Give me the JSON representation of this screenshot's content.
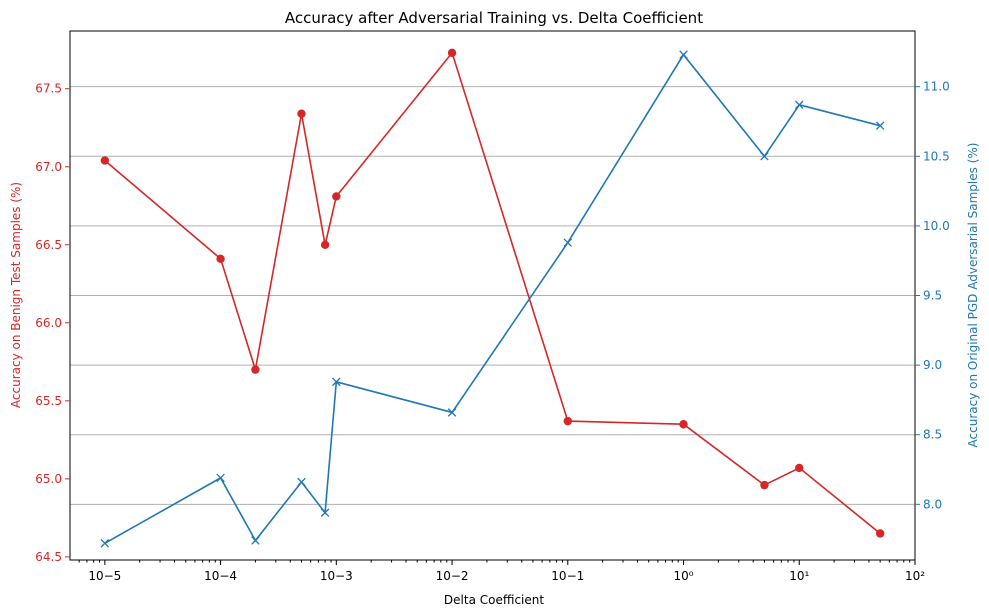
{
  "chart_data": {
    "type": "line",
    "title": "Accuracy after Adversarial Training vs. Delta Coefficient",
    "xlabel": "Delta Coefficient",
    "x_scale": "log",
    "xlim": [
      5e-06,
      100
    ],
    "x_ticks": [
      {
        "value": 1e-05,
        "label": "10−5"
      },
      {
        "value": 0.0001,
        "label": "10−4"
      },
      {
        "value": 0.001,
        "label": "10−3"
      },
      {
        "value": 0.01,
        "label": "10−2"
      },
      {
        "value": 0.1,
        "label": "10−1"
      },
      {
        "value": 1,
        "label": "10⁰"
      },
      {
        "value": 10,
        "label": "10¹"
      },
      {
        "value": 100,
        "label": "10²"
      }
    ],
    "x": [
      1e-05,
      0.0001,
      0.0002,
      0.0005,
      0.0008,
      0.001,
      0.01,
      0.1,
      1,
      5,
      10,
      50
    ],
    "left_axis": {
      "label": "Accuracy on Benign Test Samples (%)",
      "color": "#d62728",
      "ylim": [
        64.48,
        67.87
      ],
      "ticks": [
        "64.5",
        "65.0",
        "65.5",
        "66.0",
        "66.5",
        "67.0",
        "67.5"
      ]
    },
    "right_axis": {
      "label": "Accuracy on Original PGD Adversarial Samples (%)",
      "color": "#1f77b4",
      "ylim": [
        7.6,
        11.4
      ],
      "ticks": [
        "8.0",
        "8.5",
        "9.0",
        "9.5",
        "10.0",
        "10.5",
        "11.0"
      ]
    },
    "grid": "horizontal lines at right-axis ticks",
    "series": [
      {
        "axis": "left",
        "marker": "circle",
        "color": "#d62728",
        "values": [
          67.04,
          66.41,
          65.7,
          67.34,
          66.5,
          66.81,
          67.73,
          65.37,
          65.35,
          64.96,
          65.07,
          64.65
        ]
      },
      {
        "axis": "right",
        "marker": "x",
        "color": "#1f77b4",
        "values": [
          7.72,
          8.19,
          7.74,
          8.16,
          7.94,
          8.88,
          8.66,
          9.88,
          11.23,
          10.5,
          10.87,
          10.72
        ]
      }
    ]
  }
}
